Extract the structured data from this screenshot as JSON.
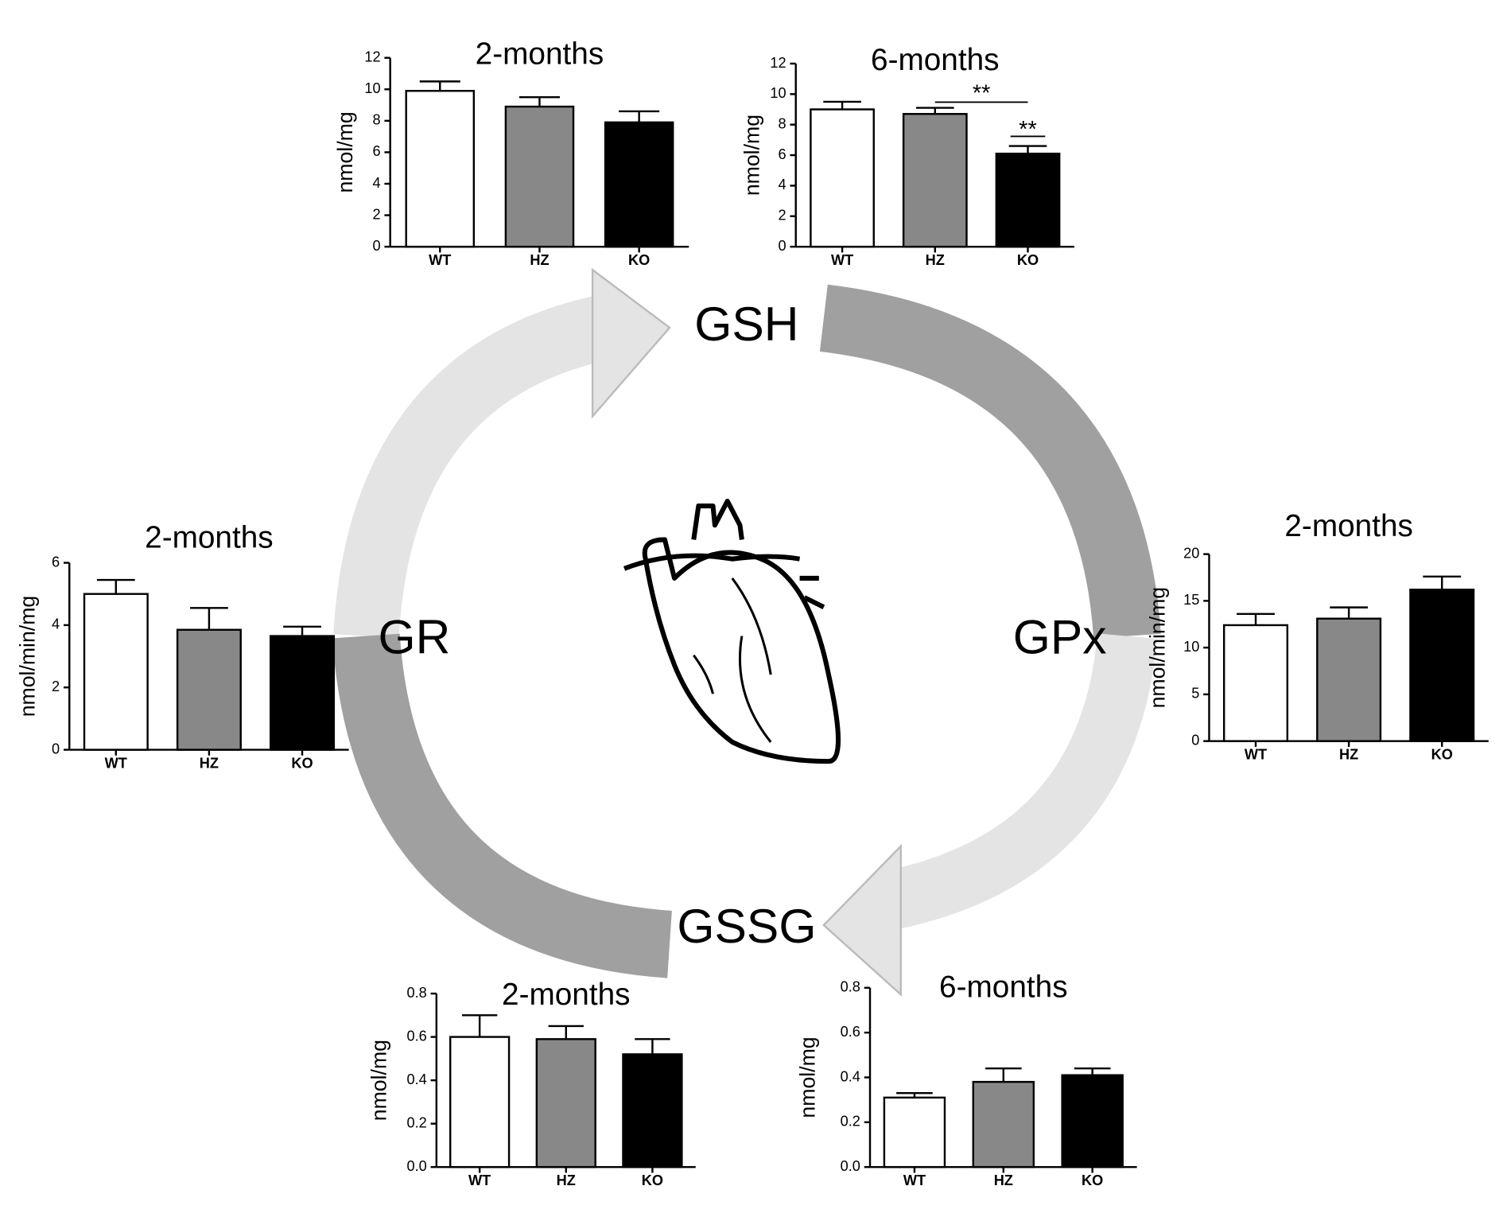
{
  "diagram": {
    "labels": [
      "GSH",
      "GR",
      "GPx",
      "GSSG"
    ]
  },
  "chart_data": [
    {
      "type": "bar",
      "title": "2-months",
      "y_label": "nmol/mg",
      "categories": [
        "WT",
        "HZ",
        "KO"
      ],
      "values": [
        9.9,
        8.9,
        7.9
      ],
      "errors": [
        0.6,
        0.6,
        0.7
      ],
      "colors": [
        "#ffffff",
        "#888888",
        "#000000"
      ],
      "ylim": [
        0,
        12
      ],
      "yticks": [
        0,
        2,
        4,
        6,
        8,
        10,
        12
      ]
    },
    {
      "type": "bar",
      "title": "6-months",
      "y_label": "nmol/mg",
      "categories": [
        "WT",
        "HZ",
        "KO"
      ],
      "values": [
        9.0,
        8.7,
        6.1
      ],
      "errors": [
        0.5,
        0.4,
        0.5
      ],
      "colors": [
        "#ffffff",
        "#888888",
        "#000000"
      ],
      "ylim": [
        0,
        12
      ],
      "yticks": [
        0,
        2,
        4,
        6,
        8,
        10,
        12
      ],
      "annotations": [
        "**",
        "**"
      ]
    },
    {
      "type": "bar",
      "title": "2-months",
      "y_label": "nmol/min/mg",
      "categories": [
        "WT",
        "HZ",
        "KO"
      ],
      "values": [
        5.0,
        3.85,
        3.65
      ],
      "errors": [
        0.45,
        0.7,
        0.3
      ],
      "colors": [
        "#ffffff",
        "#888888",
        "#000000"
      ],
      "ylim": [
        0,
        6
      ],
      "yticks": [
        0,
        2,
        4,
        6
      ]
    },
    {
      "type": "bar",
      "title": "2-months",
      "y_label": "nmol/min/mg",
      "categories": [
        "WT",
        "HZ",
        "KO"
      ],
      "values": [
        12.4,
        13.1,
        16.2
      ],
      "errors": [
        1.2,
        1.2,
        1.4
      ],
      "colors": [
        "#ffffff",
        "#888888",
        "#000000"
      ],
      "ylim": [
        0,
        20
      ],
      "yticks": [
        0,
        5,
        10,
        15,
        20
      ]
    },
    {
      "type": "bar",
      "title": "2-months",
      "y_label": "nmol/mg",
      "categories": [
        "WT",
        "HZ",
        "KO"
      ],
      "values": [
        0.6,
        0.59,
        0.52
      ],
      "errors": [
        0.1,
        0.06,
        0.07
      ],
      "colors": [
        "#ffffff",
        "#888888",
        "#000000"
      ],
      "ylim": [
        0,
        0.8
      ],
      "yticks": [
        {
          "value": 0,
          "label": "0.0"
        },
        0.2,
        0.4,
        0.6,
        0.8
      ]
    },
    {
      "type": "bar",
      "title": "6-months",
      "y_label": "nmol/mg",
      "categories": [
        "WT",
        "HZ",
        "KO"
      ],
      "values": [
        0.31,
        0.38,
        0.41
      ],
      "errors": [
        0.02,
        0.06,
        0.03
      ],
      "colors": [
        "#ffffff",
        "#888888",
        "#000000"
      ],
      "ylim": [
        0,
        0.8
      ],
      "yticks": [
        {
          "value": 0,
          "label": "0.0"
        },
        0.2,
        0.4,
        0.6,
        0.8
      ]
    }
  ]
}
